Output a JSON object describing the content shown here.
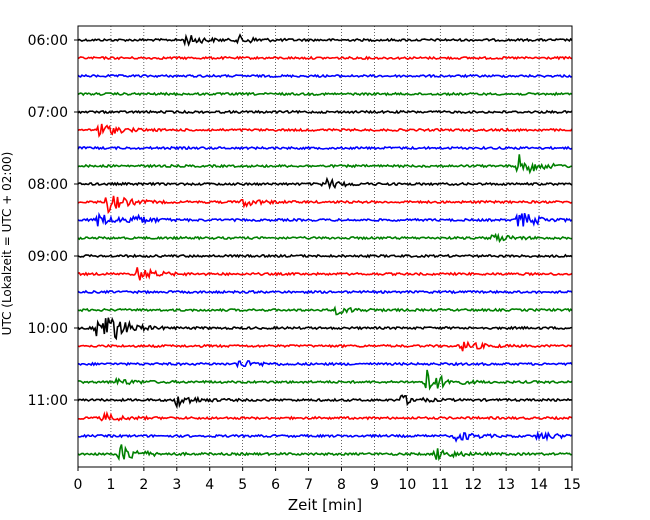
{
  "chart_data": {
    "type": "line",
    "title": "",
    "xlabel": "Zeit  [min]",
    "ylabel": "UTC (Lokalzeit = UTC + 02:00)",
    "xlim": [
      0,
      15
    ],
    "x_ticks": [
      0,
      1,
      2,
      3,
      4,
      5,
      6,
      7,
      8,
      9,
      10,
      11,
      12,
      13,
      14,
      15
    ],
    "x_grid": true,
    "y_ticks": [
      "06:00",
      "07:00",
      "08:00",
      "09:00",
      "10:00",
      "11:00"
    ],
    "trace_interval_minutes": 15,
    "start_time": "06:00",
    "trace_colors": [
      "#000000",
      "#ff0000",
      "#0000ff",
      "#008000"
    ],
    "traces": [
      {
        "start": "06:00",
        "color": "#000000",
        "events": [
          {
            "t": 3.3,
            "a": 5
          },
          {
            "t": 4.9,
            "a": 4
          }
        ]
      },
      {
        "start": "06:15",
        "color": "#ff0000",
        "events": []
      },
      {
        "start": "06:30",
        "color": "#0000ff",
        "events": []
      },
      {
        "start": "06:45",
        "color": "#008000",
        "events": []
      },
      {
        "start": "07:00",
        "color": "#000000",
        "events": []
      },
      {
        "start": "07:15",
        "color": "#ff0000",
        "events": [
          {
            "t": 0.6,
            "a": 8
          }
        ]
      },
      {
        "start": "07:30",
        "color": "#0000ff",
        "events": []
      },
      {
        "start": "07:45",
        "color": "#008000",
        "events": [
          {
            "t": 13.4,
            "a": 11
          }
        ]
      },
      {
        "start": "08:00",
        "color": "#000000",
        "events": [
          {
            "t": 7.5,
            "a": 5
          }
        ]
      },
      {
        "start": "08:15",
        "color": "#ff0000",
        "events": [
          {
            "t": 0.9,
            "a": 10
          },
          {
            "t": 5.0,
            "a": 4
          }
        ]
      },
      {
        "start": "08:30",
        "color": "#0000ff",
        "events": [
          {
            "t": 0.6,
            "a": 7
          },
          {
            "t": 1.6,
            "a": 5
          },
          {
            "t": 13.4,
            "a": 9
          }
        ]
      },
      {
        "start": "08:45",
        "color": "#008000",
        "events": [
          {
            "t": 12.6,
            "a": 4
          }
        ]
      },
      {
        "start": "09:00",
        "color": "#000000",
        "events": []
      },
      {
        "start": "09:15",
        "color": "#ff0000",
        "events": [
          {
            "t": 1.8,
            "a": 7
          }
        ]
      },
      {
        "start": "09:30",
        "color": "#0000ff",
        "events": []
      },
      {
        "start": "09:45",
        "color": "#008000",
        "events": [
          {
            "t": 7.8,
            "a": 4
          }
        ]
      },
      {
        "start": "10:00",
        "color": "#000000",
        "events": [
          {
            "t": 0.6,
            "a": 10
          },
          {
            "t": 0.9,
            "a": 13
          }
        ]
      },
      {
        "start": "10:15",
        "color": "#ff0000",
        "events": [
          {
            "t": 11.7,
            "a": 5
          }
        ]
      },
      {
        "start": "10:30",
        "color": "#0000ff",
        "events": [
          {
            "t": 4.9,
            "a": 4
          }
        ]
      },
      {
        "start": "10:45",
        "color": "#008000",
        "events": [
          {
            "t": 10.6,
            "a": 12
          },
          {
            "t": 1.2,
            "a": 3
          }
        ]
      },
      {
        "start": "11:00",
        "color": "#000000",
        "events": [
          {
            "t": 3.0,
            "a": 6
          },
          {
            "t": 9.8,
            "a": 5
          }
        ]
      },
      {
        "start": "11:15",
        "color": "#ff0000",
        "events": [
          {
            "t": 0.8,
            "a": 4
          }
        ]
      },
      {
        "start": "11:30",
        "color": "#0000ff",
        "events": [
          {
            "t": 11.5,
            "a": 5
          },
          {
            "t": 14.0,
            "a": 4
          }
        ]
      },
      {
        "start": "11:45",
        "color": "#008000",
        "events": [
          {
            "t": 1.3,
            "a": 9
          },
          {
            "t": 10.9,
            "a": 6
          }
        ]
      }
    ]
  }
}
